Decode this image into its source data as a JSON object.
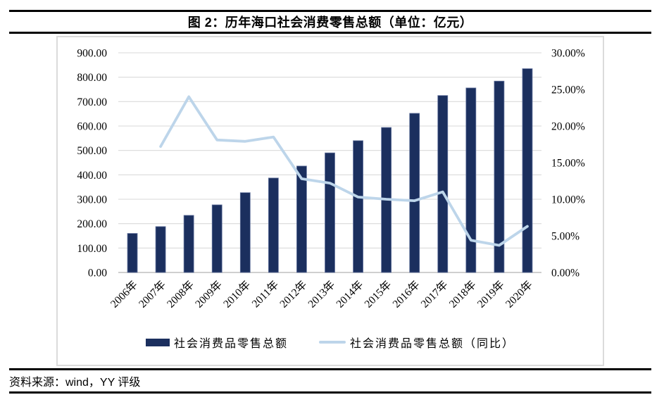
{
  "figure": {
    "title": "图 2：历年海口社会消费零售总额（单位：亿元）",
    "source_label": "资料来源：wind，YY 评级"
  },
  "colors": {
    "bar": "#1B2F5E",
    "bar_edge": "#64749E",
    "line": "#BDD5EA",
    "grid": "#D9D9D9",
    "axis": "#C8C8C8",
    "rule": "#000000",
    "chart_border": "#DBDBDB"
  },
  "chart_data": {
    "type": "bar",
    "subtype": "combo bar + line, dual y-axis",
    "title": "图 2：历年海口社会消费零售总额（单位：亿元）",
    "categories": [
      "2006年",
      "2007年",
      "2008年",
      "2009年",
      "2010年",
      "2011年",
      "2012年",
      "2013年",
      "2014年",
      "2015年",
      "2016年",
      "2017年",
      "2018年",
      "2019年",
      "2020年"
    ],
    "series": [
      {
        "name": "社会消费品零售总额",
        "type": "bar",
        "axis": "left",
        "unit": "亿元",
        "color": "#1B2F5E",
        "values": [
          160,
          188,
          234,
          277,
          327,
          387,
          436,
          490,
          540,
          594,
          652,
          725,
          756,
          784,
          835
        ]
      },
      {
        "name": "社会消费品零售总额（同比）",
        "type": "line",
        "axis": "right",
        "unit": "%",
        "color": "#BDD5EA",
        "values": [
          null,
          17.2,
          24.0,
          18.1,
          17.9,
          18.5,
          12.8,
          12.2,
          10.3,
          10.0,
          9.8,
          11.0,
          4.4,
          3.7,
          6.3
        ]
      }
    ],
    "left_axis": {
      "min": 0,
      "max": 900,
      "step": 100,
      "ticks": [
        "0.00",
        "100.00",
        "200.00",
        "300.00",
        "400.00",
        "500.00",
        "600.00",
        "700.00",
        "800.00",
        "900.00"
      ]
    },
    "right_axis": {
      "min": 0,
      "max": 30,
      "step": 5,
      "ticks": [
        "0.00%",
        "5.00%",
        "10.00%",
        "15.00%",
        "20.00%",
        "25.00%",
        "30.00%"
      ]
    },
    "grid": true,
    "legend_position": "bottom"
  }
}
